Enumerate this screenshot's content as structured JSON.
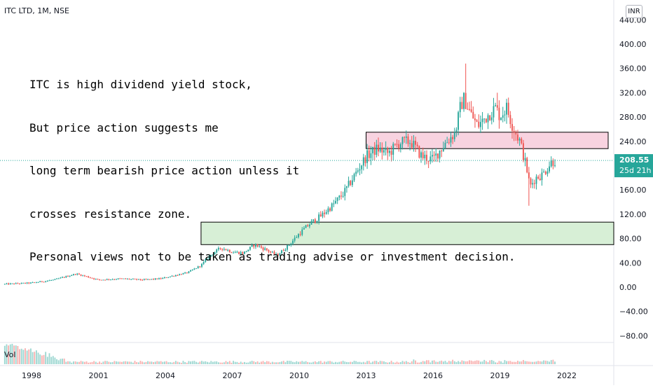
{
  "header": {
    "symbol": "ITC LTD, 1M, NSE",
    "currency": "INR",
    "volume_label": "Vol"
  },
  "annotation": {
    "lines": [
      "ITC is high dividend yield stock,",
      "But price action suggests me",
      "long term bearish price action unless it",
      "crosses resistance zone.",
      "Personal views not to be taken as trading advise or investment decision."
    ]
  },
  "chart_data": {
    "type": "candlestick",
    "timeframe": "1M",
    "y_ticks": [
      440,
      400,
      360,
      320,
      280,
      240,
      160,
      120,
      80,
      40,
      0,
      -40,
      -80
    ],
    "y_tick_labels": [
      "440.00",
      "400.00",
      "360.00",
      "320.00",
      "280.00",
      "240.00",
      "160.00",
      "120.00",
      "80.00",
      "40.00",
      "0.00",
      "−40.00",
      "−80.00"
    ],
    "ylim": [
      -90,
      460
    ],
    "x_ticks": [
      1998,
      2001,
      2004,
      2007,
      2010,
      2013,
      2016,
      2019,
      2022
    ],
    "x_tick_labels": [
      "1998",
      "2001",
      "2004",
      "2007",
      "2010",
      "2013",
      "2016",
      "2019",
      "2022"
    ],
    "xlim": [
      1996.7,
      2023.4
    ],
    "last_price": "208.55",
    "countdown": "25d 21h",
    "colors": {
      "up": "#26a69a",
      "down": "#ef5350",
      "last_price": "#26a69a"
    },
    "close_path": [
      [
        1996.8,
        5
      ],
      [
        1998.0,
        7
      ],
      [
        1999.0,
        12
      ],
      [
        2000.0,
        22
      ],
      [
        2000.5,
        17
      ],
      [
        2001.0,
        12
      ],
      [
        2002.0,
        14
      ],
      [
        2003.0,
        12
      ],
      [
        2003.8,
        14
      ],
      [
        2004.5,
        20
      ],
      [
        2005.0,
        24
      ],
      [
        2005.6,
        36
      ],
      [
        2006.0,
        52
      ],
      [
        2006.5,
        65
      ],
      [
        2007.0,
        58
      ],
      [
        2007.5,
        56
      ],
      [
        2008.0,
        70
      ],
      [
        2008.5,
        62
      ],
      [
        2009.0,
        52
      ],
      [
        2009.5,
        68
      ],
      [
        2010.0,
        88
      ],
      [
        2010.5,
        105
      ],
      [
        2011.0,
        118
      ],
      [
        2011.5,
        135
      ],
      [
        2012.0,
        155
      ],
      [
        2012.5,
        185
      ],
      [
        2013.0,
        215
      ],
      [
        2013.5,
        228
      ],
      [
        2014.0,
        220
      ],
      [
        2014.5,
        238
      ],
      [
        2015.0,
        240
      ],
      [
        2015.5,
        215
      ],
      [
        2016.0,
        210
      ],
      [
        2016.5,
        235
      ],
      [
        2017.0,
        255
      ],
      [
        2017.25,
        300
      ],
      [
        2017.4,
        310
      ],
      [
        2017.7,
        285
      ],
      [
        2018.0,
        265
      ],
      [
        2018.5,
        285
      ],
      [
        2018.8,
        295
      ],
      [
        2019.0,
        282
      ],
      [
        2019.3,
        295
      ],
      [
        2019.6,
        262
      ],
      [
        2019.9,
        240
      ],
      [
        2020.2,
        195
      ],
      [
        2020.35,
        165
      ],
      [
        2020.6,
        180
      ],
      [
        2020.9,
        185
      ],
      [
        2021.1,
        195
      ],
      [
        2021.3,
        206
      ],
      [
        2021.5,
        208.55
      ]
    ],
    "highs_annotated": [
      [
        2017.5,
        368
      ],
      [
        2018.9,
        320
      ]
    ],
    "lows_annotated": [
      [
        2020.3,
        134
      ]
    ],
    "zones": [
      {
        "name": "resistance-zone",
        "x": [
          2013.0,
          2024.0
        ],
        "y": [
          228,
          255
        ],
        "color": "#f8d3e0"
      },
      {
        "name": "support-zone",
        "x": [
          2005.6,
          2024.0
        ],
        "y": [
          70,
          107
        ],
        "color": "#d7efd6"
      }
    ]
  }
}
